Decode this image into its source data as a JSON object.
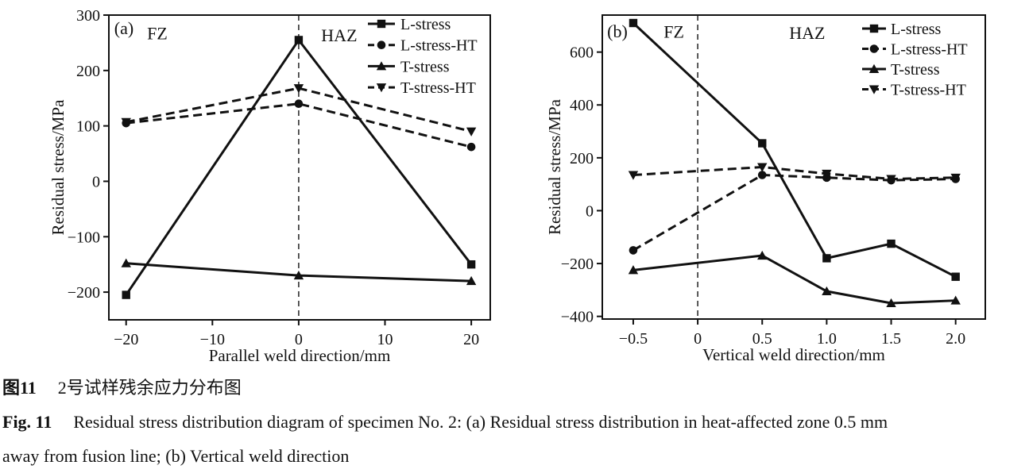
{
  "page": {
    "background": "#ffffff",
    "ink_color": "#111111"
  },
  "caption": {
    "zh_label": "图11",
    "zh_text": "2号试样残余应力分布图",
    "en_label": "Fig. 11",
    "en_line1": "Residual stress distribution diagram of specimen No. 2: (a) Residual stress distribution in heat-affected zone 0.5 mm",
    "en_line2": "away from fusion line; (b) Vertical weld direction"
  },
  "chart_data": [
    {
      "id": "a",
      "type": "line",
      "panel_label": "(a)",
      "xlabel": "Parallel weld direction/mm",
      "ylabel": "Residual stress/MPa",
      "xlim": [
        -22,
        22.2
      ],
      "ylim": [
        -250,
        300
      ],
      "xticks": [
        -20,
        -10,
        0,
        10,
        20
      ],
      "xtick_labels": [
        "−20",
        "−10",
        "0",
        "10",
        "20"
      ],
      "yticks": [
        300,
        200,
        100,
        0,
        -100,
        -200
      ],
      "ytick_labels": [
        "300",
        "200",
        "100",
        "0",
        "−100",
        "−200"
      ],
      "vline_x": 0,
      "grid": false,
      "legend_position": "top-right-inside",
      "zone_labels": [
        {
          "text": "FZ",
          "fx": 0.127,
          "fy": 0.058
        },
        {
          "text": "HAZ",
          "fx": 0.604,
          "fy": 0.065
        }
      ],
      "x": [
        -20,
        0,
        20
      ],
      "series": [
        {
          "name": "L-stress",
          "line": "solid",
          "marker": "square",
          "values": [
            -205,
            255,
            -150
          ]
        },
        {
          "name": "L-stress-HT",
          "line": "dashed",
          "marker": "circle",
          "values": [
            105,
            140,
            62
          ]
        },
        {
          "name": "T-stress",
          "line": "solid",
          "marker": "triangle-up",
          "values": [
            -148,
            -170,
            -180
          ]
        },
        {
          "name": "T-stress-HT",
          "line": "dashed",
          "marker": "triangle-down",
          "values": [
            107,
            168,
            90
          ]
        }
      ]
    },
    {
      "id": "b",
      "type": "line",
      "panel_label": "(b)",
      "xlabel": "Vertical weld direction/mm",
      "ylabel": "Residual stress/MPa",
      "xlim": [
        -0.74,
        2.23
      ],
      "ylim": [
        -410,
        740
      ],
      "xticks": [
        -0.5,
        0,
        0.5,
        1.0,
        1.5,
        2.0
      ],
      "xtick_labels": [
        "−0.5",
        "0",
        "0.5",
        "1.0",
        "1.5",
        "2.0"
      ],
      "yticks": [
        600,
        400,
        200,
        0,
        -200,
        -400
      ],
      "ytick_labels": [
        "600",
        "400",
        "200",
        "0",
        "−200",
        "−400"
      ],
      "vline_x": 0,
      "grid": false,
      "legend_position": "top-right-inside",
      "zone_labels": [
        {
          "text": "FZ",
          "fx": 0.187,
          "fy": 0.053
        },
        {
          "text": "HAZ",
          "fx": 0.535,
          "fy": 0.058
        }
      ],
      "x": [
        -0.5,
        0.5,
        1.0,
        1.5,
        2.0
      ],
      "series": [
        {
          "name": "L-stress",
          "line": "solid",
          "marker": "square",
          "values": [
            710,
            255,
            -180,
            -125,
            -250
          ]
        },
        {
          "name": "L-stress-HT",
          "line": "dashed",
          "marker": "circle",
          "values": [
            -150,
            135,
            125,
            115,
            120
          ]
        },
        {
          "name": "T-stress",
          "line": "solid",
          "marker": "triangle-up",
          "values": [
            -225,
            -170,
            -305,
            -350,
            -340
          ]
        },
        {
          "name": "T-stress-HT",
          "line": "dashed",
          "marker": "triangle-down",
          "values": [
            135,
            165,
            140,
            120,
            125
          ]
        }
      ]
    }
  ]
}
